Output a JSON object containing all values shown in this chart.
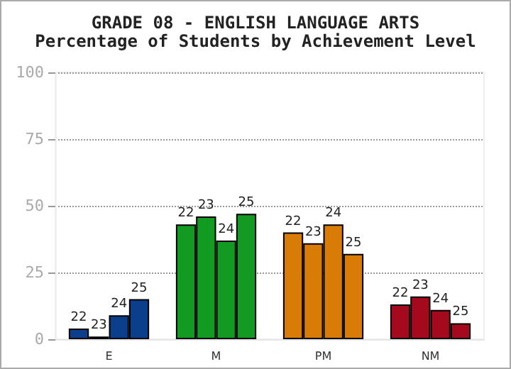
{
  "chart_data": {
    "type": "bar",
    "title": "GRADE 08 - ENGLISH LANGUAGE ARTS",
    "subtitle": "Percentage of Students by Achievement Level",
    "categories": [
      "E",
      "M",
      "PM",
      "NM"
    ],
    "series": [
      {
        "name": "22",
        "colors": [
          "#0b3f8c",
          "#129a22",
          "#d97c07",
          "#a5091e"
        ],
        "values": [
          4,
          43,
          40,
          13
        ]
      },
      {
        "name": "23",
        "colors": [
          "#0b3f8c",
          "#129a22",
          "#d97c07",
          "#a5091e"
        ],
        "values": [
          1,
          46,
          36,
          16
        ]
      },
      {
        "name": "24",
        "colors": [
          "#0b3f8c",
          "#129a22",
          "#d97c07",
          "#a5091e"
        ],
        "values": [
          9,
          37,
          43,
          11
        ]
      },
      {
        "name": "25",
        "colors": [
          "#0b3f8c",
          "#129a22",
          "#d97c07",
          "#a5091e"
        ],
        "values": [
          15,
          47,
          32,
          6
        ]
      }
    ],
    "ylim": [
      0,
      100
    ],
    "yticks": [
      0,
      25,
      50,
      75,
      100
    ],
    "grid": "y",
    "legend": false
  }
}
